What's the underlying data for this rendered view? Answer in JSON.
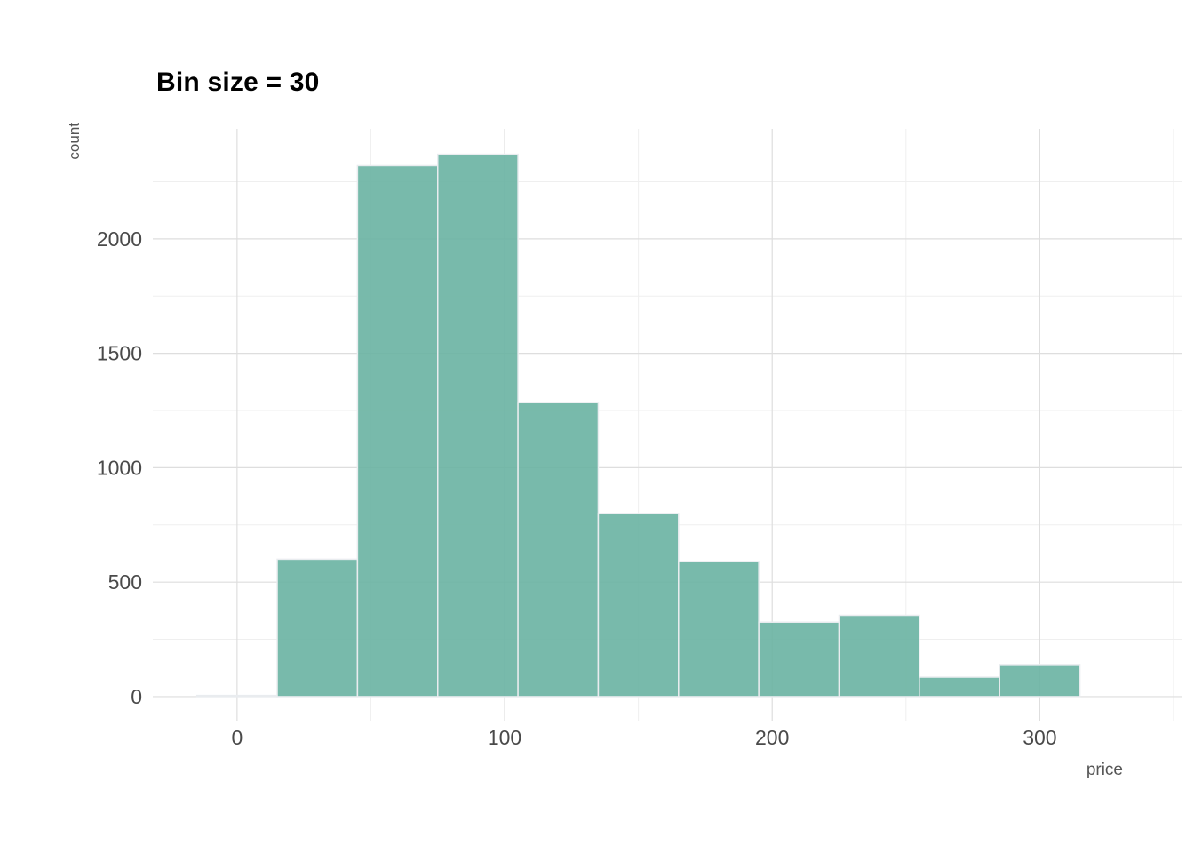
{
  "chart_data": {
    "type": "bar",
    "subtype": "histogram",
    "title": "Bin size = 30",
    "xlabel": "price",
    "ylabel": "count",
    "bin_width": 30,
    "bins": [
      {
        "x0": -15,
        "x1": 15,
        "count": 5
      },
      {
        "x0": 15,
        "x1": 45,
        "count": 600
      },
      {
        "x0": 45,
        "x1": 75,
        "count": 2320
      },
      {
        "x0": 75,
        "x1": 105,
        "count": 2370
      },
      {
        "x0": 105,
        "x1": 135,
        "count": 1285
      },
      {
        "x0": 135,
        "x1": 165,
        "count": 800
      },
      {
        "x0": 165,
        "x1": 195,
        "count": 590
      },
      {
        "x0": 195,
        "x1": 225,
        "count": 325
      },
      {
        "x0": 225,
        "x1": 255,
        "count": 355
      },
      {
        "x0": 255,
        "x1": 285,
        "count": 85
      },
      {
        "x0": 285,
        "x1": 315,
        "count": 140
      }
    ],
    "x_ticks": [
      0,
      100,
      200,
      300
    ],
    "x_minor_gridlines": [
      50,
      150,
      250,
      350
    ],
    "y_ticks": [
      0,
      500,
      1000,
      1500,
      2000
    ],
    "y_minor_gridlines": [
      250,
      750,
      1250,
      1750,
      2250
    ],
    "xlim": [
      -31.5,
      353
    ],
    "ylim": [
      -109,
      2481
    ],
    "grid": true,
    "legend": "none",
    "colors": {
      "bar_fill": "#69b3a2",
      "bar_fill_alpha": 0.9,
      "bar_stroke": "#e9ecef",
      "grid_major": "#dedede",
      "grid_minor": "#efefef",
      "tick_text": "#4a4a4a",
      "axis_title_text": "#555555",
      "title_text": "#000000",
      "background": "#ffffff"
    }
  }
}
